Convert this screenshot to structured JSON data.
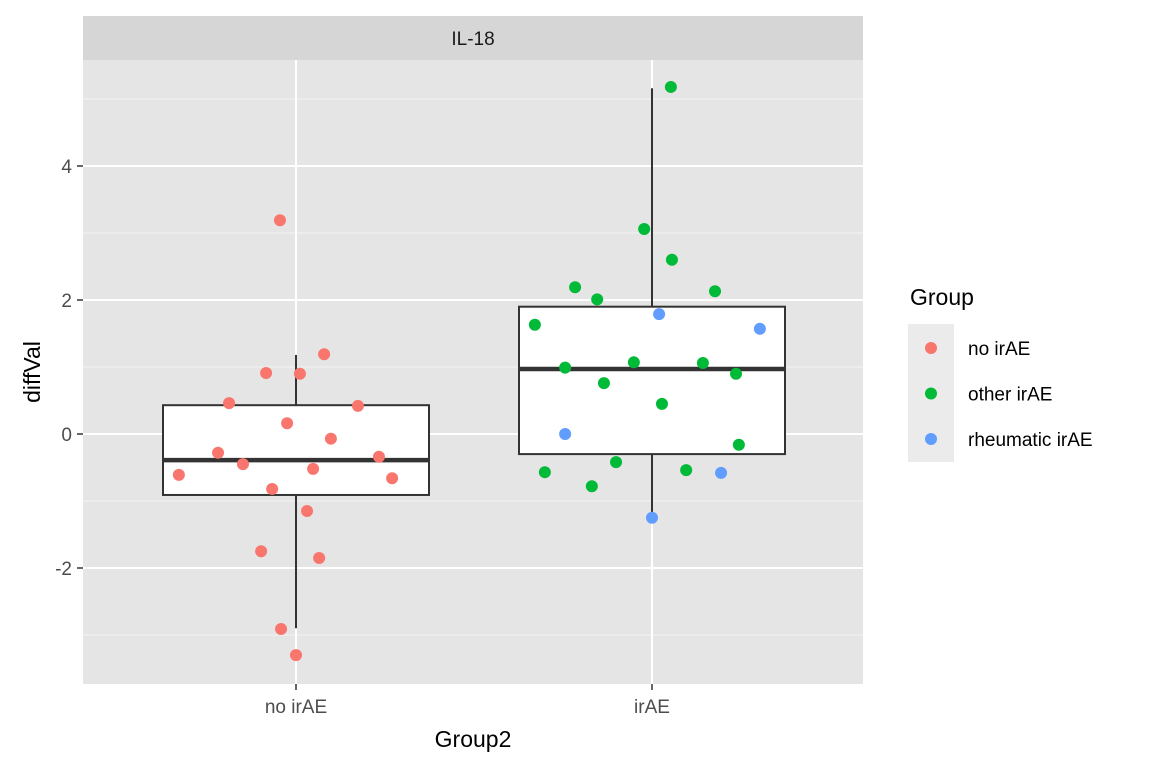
{
  "chart_data": {
    "type": "box",
    "facet_title": "IL-18",
    "xlabel": "Group2",
    "ylabel": "diffVal",
    "categories": [
      "no irAE",
      "irAE"
    ],
    "yticks": [
      -2,
      0,
      2,
      4
    ],
    "ylim": [
      -3.73,
      5.58
    ],
    "legend": {
      "title": "Group",
      "position": "right",
      "entries": [
        {
          "label": "no irAE",
          "color": "#F8766D"
        },
        {
          "label": "other irAE",
          "color": "#00BA38"
        },
        {
          "label": "rheumatic irAE",
          "color": "#619CFF"
        }
      ]
    },
    "boxes": [
      {
        "category": "no irAE",
        "whisker_low": -2.9,
        "q1": -0.91,
        "median": -0.39,
        "q3": 0.43,
        "whisker_high": 1.18
      },
      {
        "category": "irAE",
        "whisker_low": -1.25,
        "q1": -0.3,
        "median": 0.97,
        "q3": 1.9,
        "whisker_high": 5.16
      }
    ],
    "series": [
      {
        "name": "no irAE",
        "points": [
          [
            0.955,
            3.19
          ],
          [
            0.916,
            0.91
          ],
          [
            1.011,
            0.9
          ],
          [
            1.079,
            1.19
          ],
          [
            0.812,
            0.46
          ],
          [
            1.174,
            0.42
          ],
          [
            0.975,
            0.16
          ],
          [
            1.098,
            -0.07
          ],
          [
            0.781,
            -0.28
          ],
          [
            0.851,
            -0.45
          ],
          [
            1.233,
            -0.34
          ],
          [
            1.048,
            -0.52
          ],
          [
            0.671,
            -0.61
          ],
          [
            1.27,
            -0.66
          ],
          [
            0.933,
            -0.82
          ],
          [
            1.031,
            -1.15
          ],
          [
            0.902,
            -1.75
          ],
          [
            1.065,
            -1.85
          ],
          [
            0.958,
            -2.91
          ],
          [
            1.0,
            -3.3
          ]
        ]
      },
      {
        "name": "other irAE",
        "points": [
          [
            2.053,
            5.18
          ],
          [
            1.978,
            3.06
          ],
          [
            2.056,
            2.6
          ],
          [
            1.784,
            2.19
          ],
          [
            1.846,
            2.01
          ],
          [
            2.177,
            2.13
          ],
          [
            1.671,
            1.63
          ],
          [
            1.756,
            0.99
          ],
          [
            1.949,
            1.07
          ],
          [
            2.143,
            1.06
          ],
          [
            1.865,
            0.76
          ],
          [
            2.236,
            0.9
          ],
          [
            2.028,
            0.45
          ],
          [
            2.244,
            -0.16
          ],
          [
            1.699,
            -0.57
          ],
          [
            1.899,
            -0.42
          ],
          [
            2.096,
            -0.54
          ],
          [
            1.831,
            -0.78
          ]
        ]
      },
      {
        "name": "rheumatic irAE",
        "points": [
          [
            2.02,
            1.79
          ],
          [
            2.303,
            1.57
          ],
          [
            1.756,
            0.0
          ],
          [
            2.194,
            -0.58
          ],
          [
            2.0,
            -1.25
          ]
        ]
      }
    ]
  }
}
